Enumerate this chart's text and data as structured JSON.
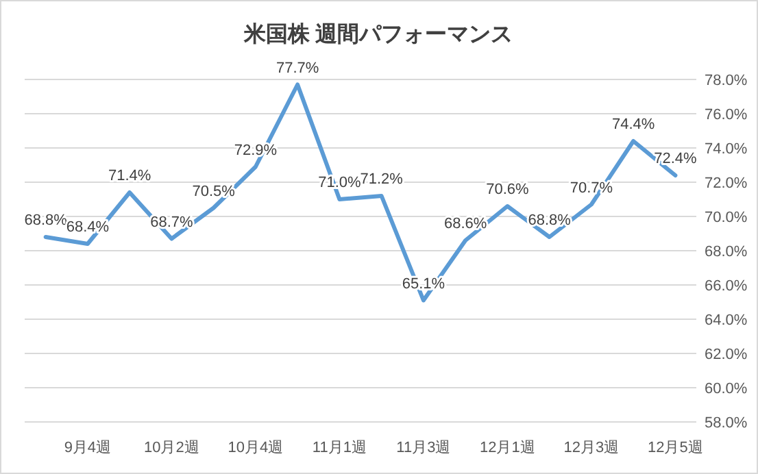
{
  "chart_data": {
    "type": "line",
    "title": "米国株 週間パフォーマンス",
    "categories": [
      null,
      "9月4週",
      null,
      "10月2週",
      null,
      "10月4週",
      null,
      "11月1週",
      null,
      "11月3週",
      null,
      "12月1週",
      null,
      "12月3週",
      null,
      "12月5週"
    ],
    "values": [
      68.8,
      68.4,
      71.4,
      68.7,
      70.5,
      72.9,
      77.7,
      71.0,
      71.2,
      65.1,
      68.6,
      70.6,
      68.8,
      70.7,
      74.4,
      72.4
    ],
    "value_labels": [
      "68.8%",
      "68.4%",
      "71.4%",
      "68.7%",
      "70.5%",
      "72.9%",
      "77.7%",
      "71.0%",
      "71.2%",
      "65.1%",
      "68.6%",
      "70.6%",
      "68.8%",
      "70.7%",
      "74.4%",
      "72.4%"
    ],
    "color": "#5b9bd5",
    "ylim": [
      58,
      78
    ],
    "yticks": [
      {
        "value": 58,
        "label": "58.0%"
      },
      {
        "value": 60,
        "label": "60.0%"
      },
      {
        "value": 62,
        "label": "62.0%"
      },
      {
        "value": 64,
        "label": "64.0%"
      },
      {
        "value": 66,
        "label": "66.0%"
      },
      {
        "value": 68,
        "label": "68.0%"
      },
      {
        "value": 70,
        "label": "70.0%"
      },
      {
        "value": 72,
        "label": "72.0%"
      },
      {
        "value": 74,
        "label": "74.0%"
      },
      {
        "value": 76,
        "label": "76.0%"
      },
      {
        "value": 78,
        "label": "78.0%"
      }
    ],
    "grid": "y"
  }
}
